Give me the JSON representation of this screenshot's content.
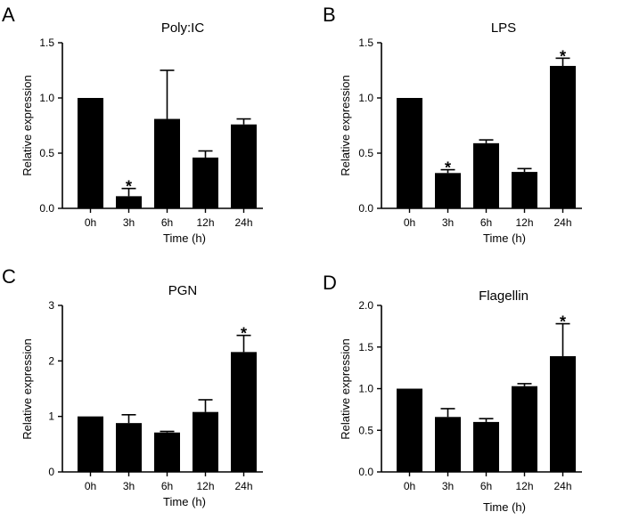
{
  "chart_data": [
    {
      "panel": "A",
      "type": "bar",
      "title": "Poly:IC",
      "xlabel": "Time (h)",
      "ylabel": "Relative expression",
      "categories": [
        "0h",
        "3h",
        "6h",
        "12h",
        "24h"
      ],
      "values": [
        1.0,
        0.11,
        0.81,
        0.46,
        0.76
      ],
      "errors": [
        0.0,
        0.07,
        0.44,
        0.06,
        0.05
      ],
      "significant": [
        "",
        "*",
        "",
        "",
        ""
      ],
      "ylim": [
        0,
        1.5
      ],
      "yticks": [
        "0.0",
        "0.5",
        "1.0",
        "1.5"
      ],
      "ytick_values": [
        0,
        0.5,
        1.0,
        1.5
      ]
    },
    {
      "panel": "B",
      "type": "bar",
      "title": "LPS",
      "xlabel": "Time (h)",
      "ylabel": "Relative expression",
      "categories": [
        "0h",
        "3h",
        "6h",
        "12h",
        "24h"
      ],
      "values": [
        1.0,
        0.32,
        0.59,
        0.33,
        1.29
      ],
      "errors": [
        0.0,
        0.03,
        0.03,
        0.03,
        0.07
      ],
      "significant": [
        "",
        "*",
        "",
        "",
        "*"
      ],
      "ylim": [
        0,
        1.5
      ],
      "yticks": [
        "0.0",
        "0.5",
        "1.0",
        "1.5"
      ],
      "ytick_values": [
        0,
        0.5,
        1.0,
        1.5
      ]
    },
    {
      "panel": "C",
      "type": "bar",
      "title": "PGN",
      "xlabel": "Time (h)",
      "ylabel": "Relative expression",
      "categories": [
        "0h",
        "3h",
        "6h",
        "12h",
        "24h"
      ],
      "values": [
        1.0,
        0.88,
        0.71,
        1.08,
        2.16
      ],
      "errors": [
        0.0,
        0.15,
        0.02,
        0.22,
        0.3
      ],
      "significant": [
        "",
        "",
        "",
        "",
        "*"
      ],
      "ylim": [
        0,
        3
      ],
      "yticks": [
        "0",
        "1",
        "2",
        "3"
      ],
      "ytick_values": [
        0,
        1,
        2,
        3
      ]
    },
    {
      "panel": "D",
      "type": "bar",
      "title": "Flagellin",
      "xlabel": "Time (h)",
      "ylabel": "Relative expression",
      "categories": [
        "0h",
        "3h",
        "6h",
        "12h",
        "24h"
      ],
      "values": [
        1.0,
        0.66,
        0.6,
        1.03,
        1.39
      ],
      "errors": [
        0.0,
        0.1,
        0.04,
        0.03,
        0.39
      ],
      "significant": [
        "",
        "",
        "",
        "",
        "*"
      ],
      "ylim": [
        0,
        2.0
      ],
      "yticks": [
        "0.0",
        "0.5",
        "1.0",
        "1.5",
        "2.0"
      ],
      "ytick_values": [
        0,
        0.5,
        1.0,
        1.5,
        2.0
      ]
    }
  ]
}
